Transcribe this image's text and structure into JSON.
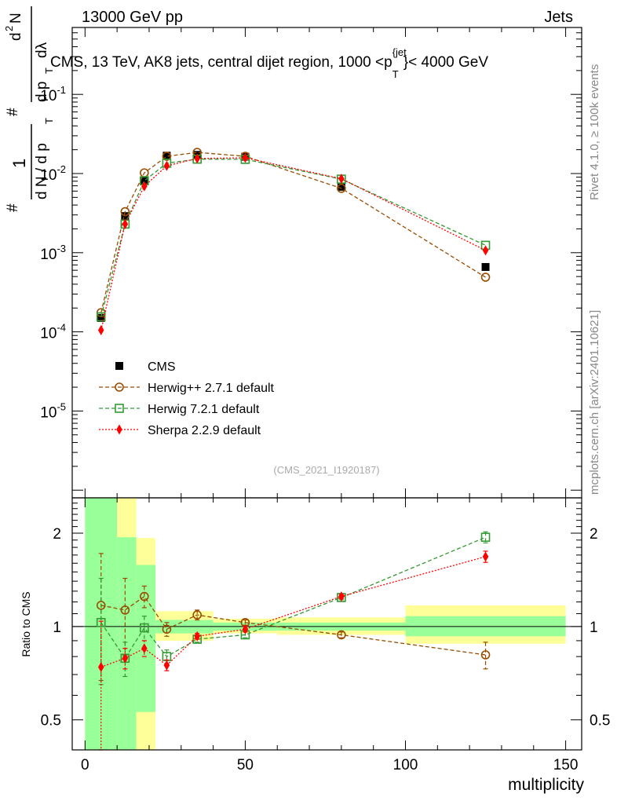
{
  "header": {
    "energy_label": "13000 GeV pp",
    "category_label": "Jets",
    "plot_title": "CMS, 13 TeV, AK8 jets, central dijet region, 1000 <p",
    "title_sup": "{jet",
    "title_sub": "T",
    "title_end": "}< 4000 GeV",
    "rivet_label": "Rivet 4.1.0, ≥ 100k events",
    "source_label": "mcplots.cern.ch [arXiv:2401.10621]",
    "analysis_id": "(CMS_2021_I1920187)"
  },
  "yaxis": {
    "main_label_parts": [
      "#",
      "1",
      "d N / d p",
      "T",
      "#",
      "d",
      "2",
      "N",
      "d p",
      "T",
      "dλ"
    ],
    "ratio_label": "Ratio to CMS"
  },
  "chart_data": [
    {
      "type": "scatter",
      "title": "CMS, 13 TeV, AK8 jets, central dijet region, 1000 < pT(jet) < 4000 GeV",
      "xlabel": "multiplicity",
      "ylabel": "1/dN/dpT d2N/dpT dlambda",
      "yscale": "log",
      "xlim": [
        -4,
        155
      ],
      "ylim": [
        8e-07,
        0.7
      ],
      "y_tick_labels": [
        "10^-5",
        "10^-4",
        "10^-3",
        "10^-2",
        "10^-1"
      ],
      "x_tick_labels": [
        "0",
        "50",
        "100",
        "150"
      ],
      "legend": [
        "CMS",
        "Herwig++ 2.7.1 default",
        "Herwig 7.2.1 default",
        "Sherpa 2.2.9 default"
      ],
      "series": [
        {
          "name": "CMS",
          "color": "#000000",
          "marker": "filled-square",
          "line": "none",
          "x": [
            5,
            12.5,
            18.5,
            25.5,
            35,
            50,
            80,
            125
          ],
          "y": [
            0.00015,
            0.0029,
            0.0082,
            0.0168,
            0.0172,
            0.0163,
            0.0068,
            0.00066
          ]
        },
        {
          "name": "Herwig++ 2.7.1 default",
          "color": "#994c00",
          "marker": "open-circle",
          "line": "dashed",
          "x": [
            5,
            12.5,
            18.5,
            25.5,
            35,
            50,
            80,
            125
          ],
          "y": [
            0.000175,
            0.0033,
            0.0102,
            0.0165,
            0.0185,
            0.0165,
            0.0065,
            0.00049
          ]
        },
        {
          "name": "Herwig 7.2.1 default",
          "color": "#339933",
          "marker": "open-square",
          "line": "dashed",
          "x": [
            5,
            12.5,
            18.5,
            25.5,
            35,
            50,
            80,
            125
          ],
          "y": [
            0.000155,
            0.0023,
            0.0081,
            0.0135,
            0.0152,
            0.0151,
            0.0085,
            0.00124
          ]
        },
        {
          "name": "Sherpa 2.2.9 default",
          "color": "#ff0000",
          "marker": "filled-diamond",
          "line": "dotted",
          "x": [
            5,
            12.5,
            18.5,
            25.5,
            35,
            50,
            80,
            125
          ],
          "y": [
            0.000105,
            0.0023,
            0.0069,
            0.0125,
            0.0155,
            0.0158,
            0.0086,
            0.00107
          ]
        }
      ]
    },
    {
      "type": "scatter",
      "title": "Ratio to CMS",
      "xlabel": "multiplicity",
      "ylabel": "Ratio to CMS",
      "yscale": "log",
      "xlim": [
        -4,
        155
      ],
      "ylim": [
        0.4,
        2.6
      ],
      "y_tick_labels": [
        "0.5",
        "1",
        "2"
      ],
      "x_tick_labels": [
        "0",
        "50",
        "100",
        "150"
      ],
      "uncertainty_bands": [
        {
          "x0": 0,
          "x1": 10,
          "stat_lo": 0.4,
          "stat_hi": 2.6,
          "tot_lo": 0.4,
          "tot_hi": 2.6
        },
        {
          "x0": 10,
          "x1": 16,
          "stat_lo": 0.4,
          "stat_hi": 1.94,
          "tot_lo": 0.4,
          "tot_hi": 2.6
        },
        {
          "x0": 16,
          "x1": 22,
          "stat_lo": 0.53,
          "stat_hi": 1.58,
          "tot_lo": 0.4,
          "tot_hi": 1.93
        },
        {
          "x0": 22,
          "x1": 40,
          "stat_lo": 0.95,
          "stat_hi": 1.05,
          "tot_lo": 0.9,
          "tot_hi": 1.12
        },
        {
          "x0": 40,
          "x1": 60,
          "stat_lo": 0.97,
          "stat_hi": 1.03,
          "tot_lo": 0.95,
          "tot_hi": 1.06
        },
        {
          "x0": 60,
          "x1": 100,
          "stat_lo": 0.97,
          "stat_hi": 1.03,
          "tot_lo": 0.94,
          "tot_hi": 1.07
        },
        {
          "x0": 100,
          "x1": 150,
          "stat_lo": 0.93,
          "stat_hi": 1.08,
          "tot_lo": 0.88,
          "tot_hi": 1.17
        }
      ],
      "series": [
        {
          "name": "Herwig++ 2.7.1 default",
          "color": "#994c00",
          "x": [
            5,
            12.5,
            18.5,
            25.5,
            35,
            50,
            80,
            125
          ],
          "y": [
            1.17,
            1.13,
            1.25,
            0.98,
            1.09,
            1.03,
            0.94,
            0.81
          ],
          "err_lo": [
            0.5,
            0.28,
            0.1,
            0.05,
            0.04,
            0.02,
            0.02,
            0.08
          ],
          "err_hi": [
            0.55,
            0.3,
            0.1,
            0.05,
            0.04,
            0.02,
            0.02,
            0.08
          ]
        },
        {
          "name": "Herwig 7.2.1 default",
          "color": "#339933",
          "x": [
            5,
            12.5,
            18.5,
            25.5,
            35,
            50,
            80,
            125
          ],
          "y": [
            1.03,
            0.79,
            0.99,
            0.8,
            0.91,
            0.94,
            1.24,
            1.94
          ],
          "err_lo": [
            0.38,
            0.1,
            0.09,
            0.04,
            0.02,
            0.02,
            0.02,
            0.08
          ],
          "err_hi": [
            0.4,
            0.1,
            0.09,
            0.04,
            0.02,
            0.02,
            0.02,
            0.08
          ]
        },
        {
          "name": "Sherpa 2.2.9 default",
          "color": "#ff0000",
          "x": [
            5,
            12.5,
            18.5,
            25.5,
            35,
            50,
            80,
            125
          ],
          "y": [
            0.74,
            0.79,
            0.85,
            0.75,
            0.93,
            0.98,
            1.25,
            1.68
          ],
          "err_lo": [
            0.38,
            0.06,
            0.05,
            0.03,
            0.02,
            0.02,
            0.02,
            0.07
          ],
          "err_hi": [
            0.3,
            0.06,
            0.05,
            0.03,
            0.02,
            0.02,
            0.02,
            0.07
          ]
        }
      ]
    }
  ]
}
